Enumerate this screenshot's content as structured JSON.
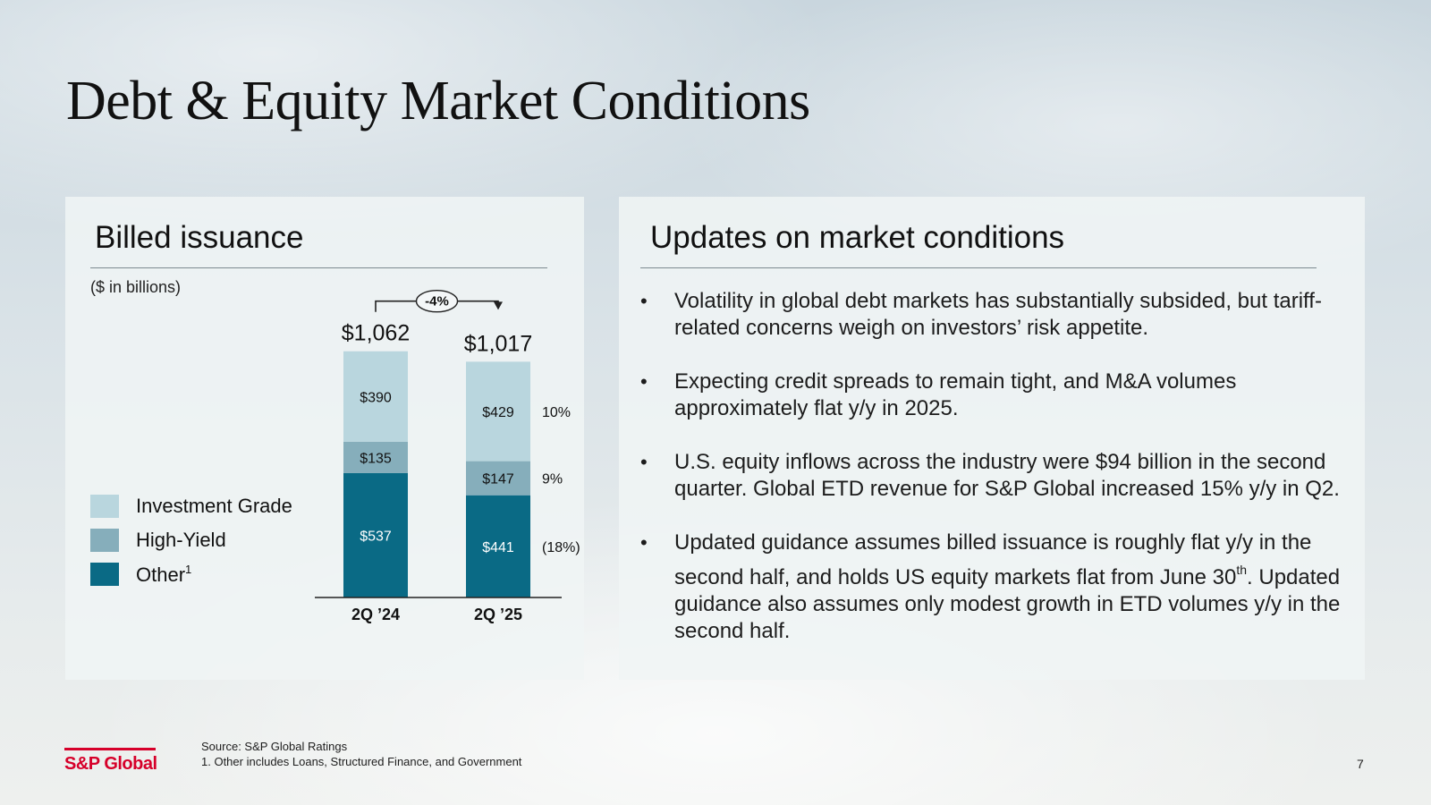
{
  "title": "Debt & Equity Market Conditions",
  "left_panel": {
    "heading": "Billed issuance",
    "units": "($ in billions)"
  },
  "right_panel": {
    "heading": "Updates on market conditions",
    "bullets": [
      "Volatility in global debt markets has substantially subsided, but tariff-related concerns weigh on investors’ risk appetite.",
      "Expecting credit spreads to remain tight, and M&A volumes approximately flat y/y in 2025.",
      "U.S. equity inflows across the industry were $94 billion in the second quarter. Global ETD revenue for S&P Global increased 15% y/y in Q2."
    ],
    "last_bullet": {
      "part1": "Updated guidance assumes billed issuance is roughly flat y/y in the second half, and holds US equity markets flat from June 30",
      "sup": "th",
      "part2": ". Updated guidance also assumes only modest growth in ETD volumes y/y in the second half."
    },
    "bullet_marker": "•"
  },
  "legend": [
    {
      "label": "Investment Grade",
      "sup": "",
      "color": "#b9d6de"
    },
    {
      "label": "High-Yield",
      "sup": "",
      "color": "#86aebb"
    },
    {
      "label": "Other",
      "sup": "1",
      "color": "#0a6a85"
    }
  ],
  "chart_data": {
    "type": "bar",
    "stacked": true,
    "title": "Billed issuance",
    "units": "($ in billions)",
    "categories": [
      "2Q ’24",
      "2Q ’25"
    ],
    "series": [
      {
        "name": "Other",
        "values": [
          537,
          441
        ],
        "value_labels": [
          "$537",
          "$441"
        ],
        "change_label": "(18%)",
        "color": "#0a6a85",
        "label_color": "#ffffff"
      },
      {
        "name": "High-Yield",
        "values": [
          135,
          147
        ],
        "value_labels": [
          "$135",
          "$147"
        ],
        "change_label": "9%",
        "color": "#86aebb",
        "label_color": "#111111"
      },
      {
        "name": "Investment Grade",
        "values": [
          390,
          429
        ],
        "value_labels": [
          "$390",
          "$429"
        ],
        "change_label": "10%",
        "color": "#b9d6de",
        "label_color": "#111111"
      }
    ],
    "totals": [
      1062,
      1017
    ],
    "total_labels": [
      "$1,062",
      "$1,017"
    ],
    "total_change_label": "-4%",
    "ylim": [
      0,
      1100
    ]
  },
  "footer": {
    "logo": "S&P Global",
    "source": "Source:  S&P Global Ratings",
    "footnote": "1. Other includes Loans, Structured Finance, and Government",
    "page_number": "7"
  },
  "colors": {
    "brand_red": "#d6002a",
    "arrow": "#222222"
  }
}
